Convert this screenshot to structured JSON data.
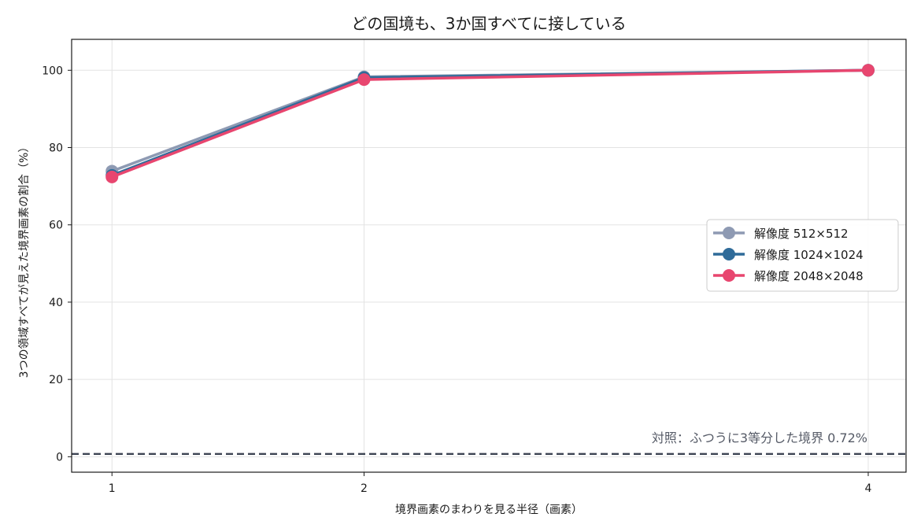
{
  "chart_data": {
    "type": "line",
    "title": "どの国境も、3か国すべてに接している",
    "xlabel": "境界画素のまわりを見る半径（画素）",
    "ylabel": "3つの領域すべてが見えた境界画素の割合（%）",
    "x": [
      1,
      2,
      4
    ],
    "x_ticks": [
      "1",
      "2",
      "4"
    ],
    "xlim": [
      0.84,
      4.15
    ],
    "ylim": [
      -4,
      108
    ],
    "y_ticks": [
      "0",
      "20",
      "40",
      "60",
      "80",
      "100"
    ],
    "grid": true,
    "legend_position": "center-right",
    "series": [
      {
        "name": "解像度 512×512",
        "values": [
          73.9,
          98.3,
          100.0
        ],
        "color": "#8e9ab3"
      },
      {
        "name": "解像度 1024×1024",
        "values": [
          72.8,
          98.1,
          100.0
        ],
        "color": "#2f6b99"
      },
      {
        "name": "解像度 2048×2048",
        "values": [
          72.4,
          97.6,
          100.0
        ],
        "color": "#e8466f"
      }
    ],
    "reference_line": {
      "value": 0.72,
      "label": "対照：ふつうに3等分した境界 0.72%",
      "color": "#3d4453"
    }
  }
}
